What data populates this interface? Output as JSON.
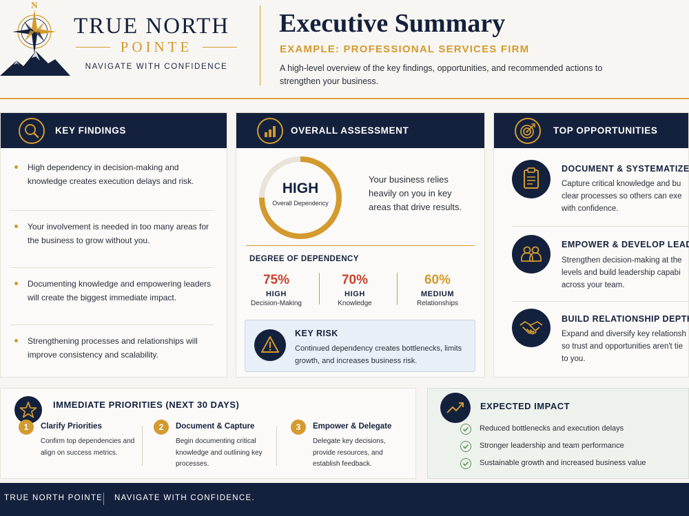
{
  "brand": {
    "compass_letter": "N",
    "name_line1": "TRUE NORTH",
    "name_line2": "POINTE",
    "tagline": "NAVIGATE WITH CONFIDENCE"
  },
  "header": {
    "title": "Executive Summary",
    "subtitle": "EXAMPLE: PROFESSIONAL SERVICES FIRM",
    "description": "A high-level overview of the key findings, opportunities, and recommended actions to strengthen your business."
  },
  "key_findings": {
    "title": "KEY FINDINGS",
    "icon": "search-icon",
    "items": [
      "High dependency in decision-making and knowledge creates execution delays and risk.",
      "Your involvement is needed in too many areas for the business to grow without you.",
      "Documenting knowledge and empowering leaders will create the biggest immediate impact.",
      "Strengthening processes and relationships will improve consistency and scalability."
    ]
  },
  "assessment": {
    "title": "OVERALL ASSESSMENT",
    "icon": "bar-chart-icon",
    "gauge_level": "HIGH",
    "gauge_label": "Overall Dependency",
    "gauge_fill_fraction": 0.75,
    "summary": "Your business relies heavily on you in key areas that drive results.",
    "degree_title": "DEGREE OF DEPENDENCY",
    "metrics": [
      {
        "pct": "75%",
        "level": "HIGH",
        "label": "Decision-Making",
        "color": "#c8412b"
      },
      {
        "pct": "70%",
        "level": "HIGH",
        "label": "Knowledge",
        "color": "#c8412b"
      },
      {
        "pct": "60%",
        "level": "MEDIUM",
        "label": "Relationships",
        "color": "#d39a2e"
      }
    ],
    "risk_title": "KEY RISK",
    "risk_text": "Continued dependency creates bottlenecks, limits growth, and increases business risk."
  },
  "opportunities": {
    "title": "TOP OPPORTUNITIES",
    "icon": "target-icon",
    "items": [
      {
        "icon": "clipboard-icon",
        "title": "DOCUMENT & SYSTEMATIZE",
        "lines": [
          "Capture critical knowledge and bu",
          "clear processes so others can exe",
          "with confidence."
        ]
      },
      {
        "icon": "people-icon",
        "title": "EMPOWER & DEVELOP LEAD",
        "lines": [
          "Strengthen decision-making at the",
          "levels and build leadership capabi",
          "across your team."
        ]
      },
      {
        "icon": "handshake-icon",
        "title": "BUILD RELATIONSHIP DEPTH",
        "lines": [
          "Expand and diversify key relationsh",
          "so trust and opportunities aren't tie",
          "to you."
        ]
      }
    ]
  },
  "priorities": {
    "title": "IMMEDIATE PRIORITIES (NEXT 30 DAYS)",
    "icon": "star-icon",
    "steps": [
      {
        "num": "1",
        "title": "Clarify Priorities",
        "text": "Confirm top dependencies and align on success metrics."
      },
      {
        "num": "2",
        "title": "Document & Capture",
        "text": "Begin documenting critical knowledge and outlining key processes."
      },
      {
        "num": "3",
        "title": "Empower & Delegate",
        "text": "Delegate key decisions, provide resources, and establish feedback."
      }
    ]
  },
  "impact": {
    "title": "EXPECTED IMPACT",
    "icon": "trend-up-icon",
    "items": [
      "Reduced bottlenecks and execution delays",
      "Stronger leadership and team performance",
      "Sustainable growth and increased business value"
    ]
  },
  "footer": {
    "left": "TRUE NORTH POINTE",
    "right": "NAVIGATE WITH CONFIDENCE."
  }
}
